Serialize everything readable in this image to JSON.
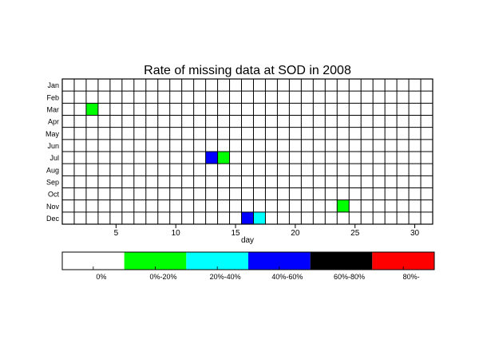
{
  "chart_data": {
    "type": "heatmap",
    "title": "Rate of missing data at SOD in 2008",
    "xlabel": "day",
    "ylabel": "",
    "months": [
      "Jan",
      "Feb",
      "Mar",
      "Apr",
      "May",
      "Jun",
      "Jul",
      "Aug",
      "Sep",
      "Oct",
      "Nov",
      "Dec"
    ],
    "days": 31,
    "x_ticks": [
      5,
      10,
      15,
      20,
      25,
      30
    ],
    "xlim": [
      0.5,
      31.5
    ],
    "grid": true,
    "colorbar": {
      "position": "bottom",
      "bins": [
        {
          "label": "0%",
          "color": "#ffffff"
        },
        {
          "label": "0%-20%",
          "color": "#00ff00"
        },
        {
          "label": "20%-40%",
          "color": "#00ffff"
        },
        {
          "label": "40%-60%",
          "color": "#0000ff"
        },
        {
          "label": "60%-80%",
          "color": "#000000"
        },
        {
          "label": "80%-",
          "color": "#ff0000"
        }
      ]
    },
    "cells": [
      {
        "month": "Mar",
        "day": 3,
        "bin": 1
      },
      {
        "month": "Jul",
        "day": 13,
        "bin": 3
      },
      {
        "month": "Jul",
        "day": 14,
        "bin": 1
      },
      {
        "month": "Nov",
        "day": 24,
        "bin": 1
      },
      {
        "month": "Dec",
        "day": 16,
        "bin": 3
      },
      {
        "month": "Dec",
        "day": 17,
        "bin": 2
      }
    ]
  }
}
